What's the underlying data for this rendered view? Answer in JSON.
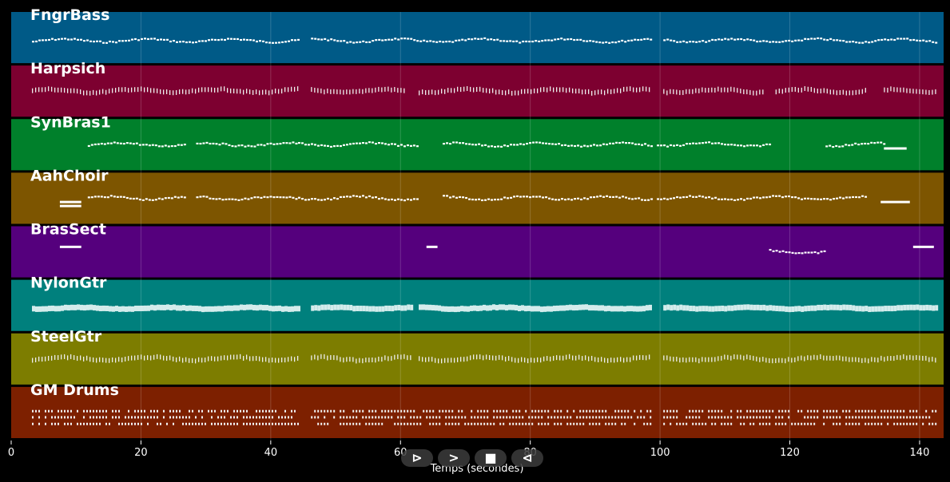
{
  "chart_data": {
    "type": "pianoroll",
    "xlabel": "Temps (secondes)",
    "xlim": [
      0,
      143.7
    ],
    "xticks": [
      0,
      20,
      40,
      60,
      80,
      100,
      120,
      140
    ],
    "grid": true,
    "tracks": [
      {
        "name": "FngrBass",
        "color": "#005a87",
        "segments": [
          [
            3.2,
            44.2
          ],
          [
            46.2,
            98.6
          ],
          [
            100.5,
            142.8
          ]
        ],
        "style": "line"
      },
      {
        "name": "Harpsich",
        "color": "#7d0030",
        "segments": [
          [
            3.2,
            44.2
          ],
          [
            46.2,
            60.8
          ],
          [
            62.8,
            98.6
          ],
          [
            100.5,
            115.8
          ],
          [
            117.8,
            131.8
          ],
          [
            134.5,
            142.8
          ]
        ],
        "style": "ticks"
      },
      {
        "name": "SynBras1",
        "color": "#00802b",
        "segments": [
          [
            11.8,
            27
          ],
          [
            28.5,
            44.2
          ],
          [
            44.2,
            62.8
          ],
          [
            66.5,
            98.6
          ],
          [
            99.5,
            116.8
          ],
          [
            125.5,
            134.5
          ]
        ],
        "sustains": [
          [
            134.5,
            138
          ]
        ],
        "style": "line"
      },
      {
        "name": "AahChoir",
        "color": "#7d5500",
        "segments": [
          [
            11.8,
            27
          ],
          [
            28.5,
            44.2
          ],
          [
            44.2,
            62.8
          ],
          [
            66.5,
            98.6
          ],
          [
            99.5,
            132
          ]
        ],
        "sustains": [
          [
            7.5,
            10.8
          ],
          [
            134,
            138.5
          ]
        ],
        "style": "line"
      },
      {
        "name": "BrasSect",
        "color": "#55007d",
        "segments": [
          [
            116.8,
            125.5
          ]
        ],
        "sustains": [
          [
            7.5,
            10.8
          ],
          [
            64,
            65.7
          ],
          [
            139,
            142.2
          ]
        ],
        "style": "line"
      },
      {
        "name": "NylonGtr",
        "color": "#00807d",
        "segments": [
          [
            3.2,
            44.2
          ],
          [
            46.2,
            61.6
          ],
          [
            62.8,
            98.6
          ],
          [
            100.5,
            142.8
          ]
        ],
        "style": "block"
      },
      {
        "name": "SteelGtr",
        "color": "#7d7d00",
        "segments": [
          [
            3.2,
            44.2
          ],
          [
            46.2,
            61.6
          ],
          [
            62.8,
            98.6
          ],
          [
            100.5,
            142.8
          ]
        ],
        "style": "ticks"
      },
      {
        "name": "GM Drums",
        "color": "#7d2000",
        "segments": [
          [
            3.2,
            44.2
          ],
          [
            46.2,
            98.6
          ],
          [
            100.5,
            142.8
          ]
        ],
        "style": "drums"
      }
    ]
  },
  "transport": {
    "play": "⊳",
    "forward": ">",
    "stop": "■",
    "back": "⊲"
  }
}
